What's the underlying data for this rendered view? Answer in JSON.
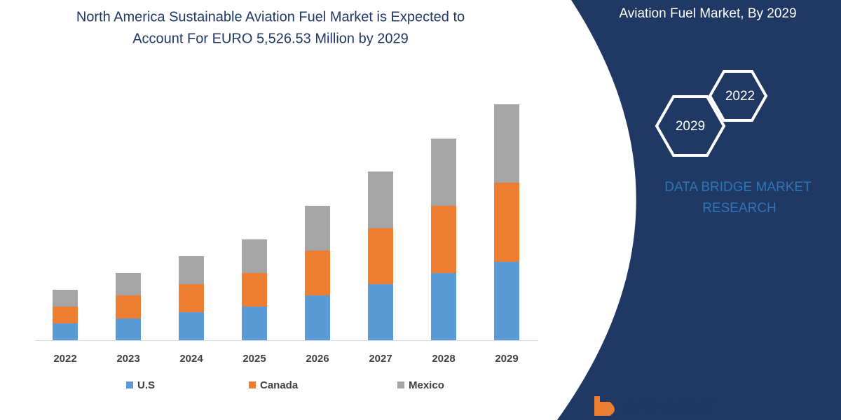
{
  "chart_data": {
    "type": "stacked_bar",
    "title": [
      "North America Sustainable Aviation Fuel Market is Expected to",
      "Account For EURO 5,526.53 Million by 2029"
    ],
    "categories": [
      "2022",
      "2023",
      "2024",
      "2025",
      "2026",
      "2027",
      "2028",
      "2029"
    ],
    "series": [
      {
        "name": "U.S",
        "color": "#5b9bd5",
        "values": [
          24,
          31,
          40,
          48,
          64,
          80,
          96,
          112
        ]
      },
      {
        "name": "Canada",
        "color": "#ed7d31",
        "values": [
          24,
          33,
          40,
          48,
          64,
          80,
          96,
          113
        ]
      },
      {
        "name": "Mexico",
        "color": "#a5a5a5",
        "values": [
          24,
          32,
          40,
          48,
          64,
          81,
          96,
          112
        ]
      }
    ]
  },
  "side_panel": {
    "heading": "Aviation Fuel Market, By 2029",
    "hexagons": [
      "2022",
      "2029"
    ],
    "brand": [
      "DATA BRIDGE MARKET",
      "RESEARCH"
    ],
    "logo": "DATA BRIDGE"
  }
}
